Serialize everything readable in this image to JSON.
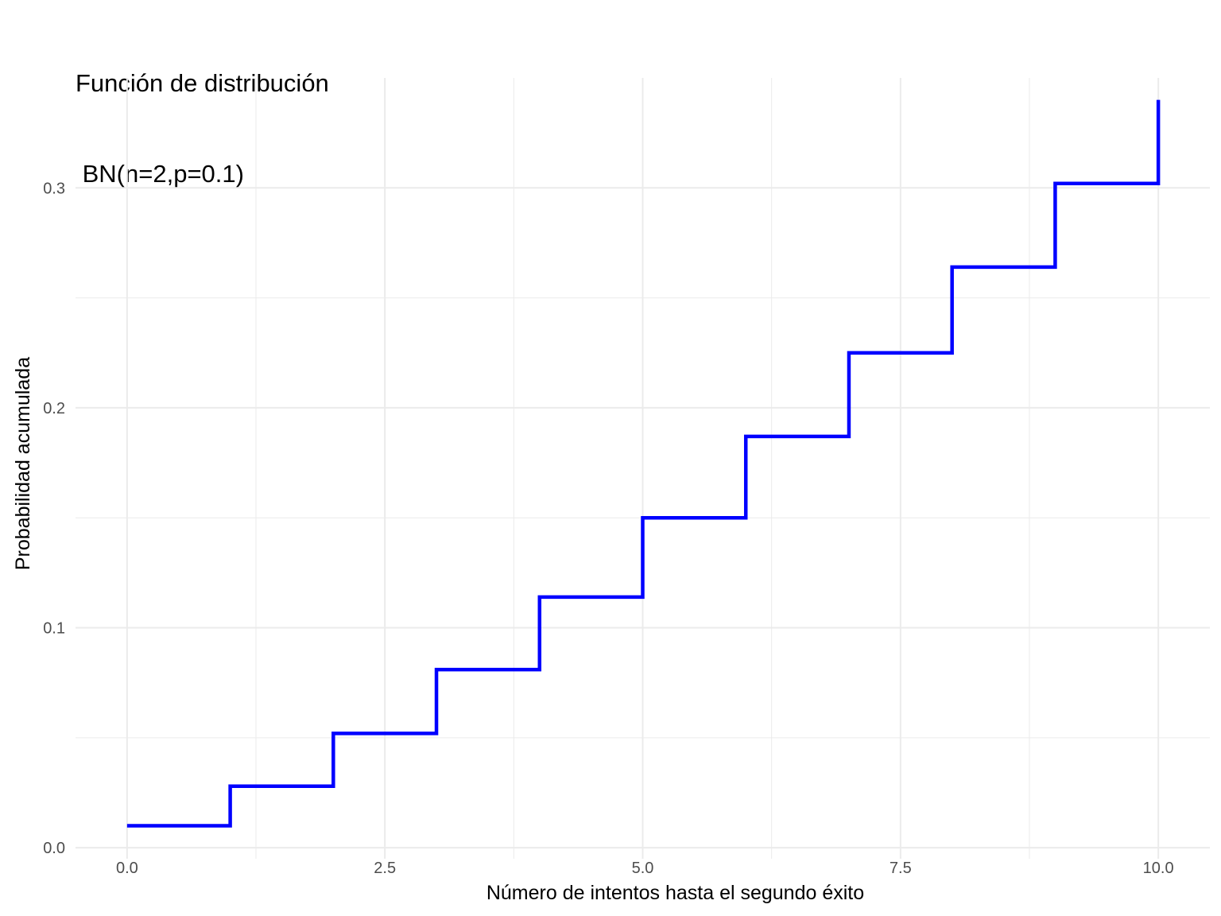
{
  "chart_data": {
    "type": "line",
    "line_style": "step",
    "title_lines": [
      "Función de distribución",
      " BN(n=2,p=0.1)"
    ],
    "xlabel": "Número de intentos hasta el segundo éxito",
    "ylabel": "Probabilidad acumulada",
    "xlim": [
      -0.5,
      10.5
    ],
    "ylim": [
      -0.005,
      0.35
    ],
    "x_ticks": [
      0.0,
      2.5,
      5.0,
      7.5,
      10.0
    ],
    "x_tick_labels": [
      "0.0",
      "2.5",
      "5.0",
      "7.5",
      "10.0"
    ],
    "x_minor_ticks": [
      1.25,
      3.75,
      6.25,
      8.75
    ],
    "y_ticks": [
      0.0,
      0.1,
      0.2,
      0.3
    ],
    "y_tick_labels": [
      "0.0",
      "0.1",
      "0.2",
      "0.3"
    ],
    "y_minor_ticks": [
      0.05,
      0.15,
      0.25
    ],
    "grid": true,
    "series": [
      {
        "color": "#0000ff",
        "x": [
          0,
          1,
          2,
          3,
          4,
          5,
          6,
          7,
          8,
          9,
          10
        ],
        "y": [
          0.01,
          0.028,
          0.052,
          0.081,
          0.114,
          0.15,
          0.187,
          0.225,
          0.264,
          0.302,
          0.34
        ]
      }
    ]
  }
}
